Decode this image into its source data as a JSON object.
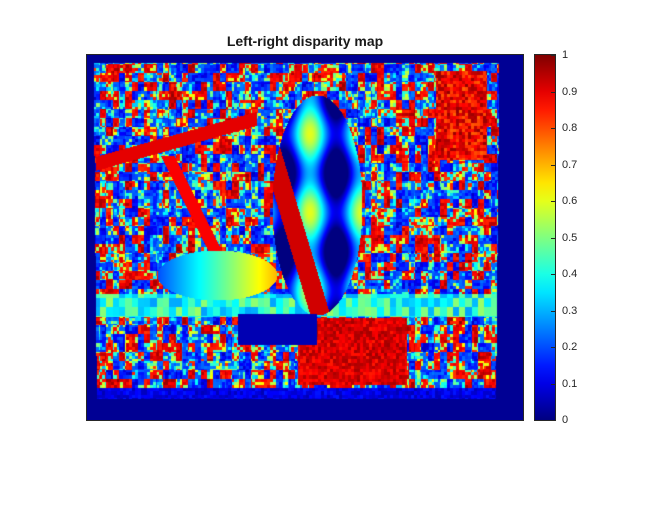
{
  "chart_data": {
    "type": "heatmap",
    "title": "Left-right disparity map",
    "colormap": "jet",
    "clim": [
      0,
      1
    ],
    "colorbar": {
      "location": "right",
      "ticks": [
        0,
        0.1,
        0.2,
        0.3,
        0.4,
        0.5,
        0.6,
        0.7,
        0.8,
        0.9,
        1
      ],
      "tick_labels": [
        "0",
        "0.1",
        "0.2",
        "0.3",
        "0.4",
        "0.5",
        "0.6",
        "0.7",
        "0.8",
        "0.9",
        "1"
      ]
    },
    "axes_visible": false
  }
}
